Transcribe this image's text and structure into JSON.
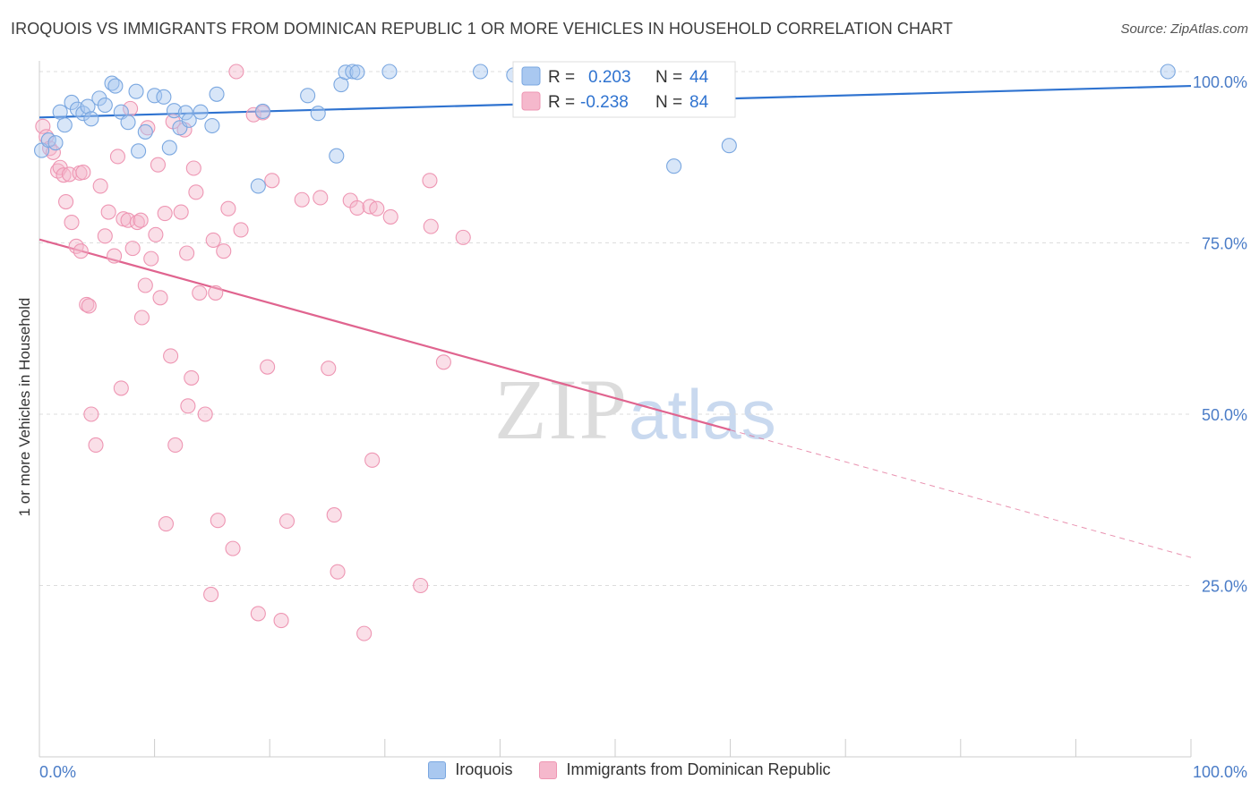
{
  "title": "IROQUOIS VS IMMIGRANTS FROM DOMINICAN REPUBLIC 1 OR MORE VEHICLES IN HOUSEHOLD CORRELATION CHART",
  "source": "Source: ZipAtlas.com",
  "watermark": {
    "zip": "ZIP",
    "atlas": "atlas"
  },
  "colors": {
    "blue_fill": "#a9c8f0",
    "blue_stroke": "#7aa7e0",
    "blue_line": "#2f73d0",
    "pink_fill": "#f5b8cc",
    "pink_stroke": "#ee96b3",
    "pink_line": "#e0648f",
    "axis_text": "#4a7cc7",
    "grid": "#dddddd"
  },
  "legend_box": {
    "rows": [
      {
        "r_label": "R =",
        "r_value": "0.203",
        "n_label": "N =",
        "n_value": "44",
        "series": "blue"
      },
      {
        "r_label": "R =",
        "r_value": "-0.238",
        "n_label": "N =",
        "n_value": "84",
        "series": "pink"
      }
    ]
  },
  "bottom_legend": {
    "series1": "Iroquois",
    "series2": "Immigrants from Dominican Republic"
  },
  "chart_data": {
    "type": "scatter",
    "title": "IROQUOIS VS IMMIGRANTS FROM DOMINICAN REPUBLIC 1 OR MORE VEHICLES IN HOUSEHOLD CORRELATION CHART",
    "xlabel": "",
    "ylabel": "1 or more Vehicles in Household",
    "xlim": [
      0,
      100
    ],
    "ylim": [
      0,
      102
    ],
    "x_ticks": [
      0,
      10,
      20,
      30,
      40,
      50,
      60,
      70,
      80,
      90,
      100
    ],
    "x_tick_labels": {
      "min": "0.0%",
      "max": "100.0%"
    },
    "y_ticks": [
      25,
      50,
      75,
      100
    ],
    "y_tick_labels": [
      "25.0%",
      "50.0%",
      "75.0%",
      "100.0%"
    ],
    "series": [
      {
        "name": "Iroquois",
        "color": "blue",
        "r": 0.203,
        "n": 44,
        "trend": {
          "x": [
            0,
            100
          ],
          "y": [
            93.3,
            97.9
          ]
        },
        "points": [
          [
            0.2,
            88.5
          ],
          [
            0.8,
            90.0
          ],
          [
            1.4,
            89.6
          ],
          [
            1.8,
            94.1
          ],
          [
            2.2,
            92.2
          ],
          [
            2.8,
            95.5
          ],
          [
            3.3,
            94.5
          ],
          [
            3.8,
            93.9
          ],
          [
            4.2,
            94.9
          ],
          [
            4.5,
            93.1
          ],
          [
            5.2,
            96.1
          ],
          [
            5.7,
            95.1
          ],
          [
            6.3,
            98.3
          ],
          [
            6.6,
            97.9
          ],
          [
            7.1,
            94.1
          ],
          [
            7.7,
            92.6
          ],
          [
            8.4,
            97.1
          ],
          [
            8.6,
            88.4
          ],
          [
            9.2,
            91.2
          ],
          [
            10.0,
            96.5
          ],
          [
            10.8,
            96.3
          ],
          [
            11.3,
            88.9
          ],
          [
            11.7,
            94.3
          ],
          [
            12.2,
            91.8
          ],
          [
            12.7,
            94.0
          ],
          [
            13.0,
            92.9
          ],
          [
            14.0,
            94.1
          ],
          [
            15.0,
            92.1
          ],
          [
            15.4,
            96.7
          ],
          [
            19.0,
            83.3
          ],
          [
            19.4,
            94.2
          ],
          [
            23.3,
            96.5
          ],
          [
            24.2,
            93.9
          ],
          [
            25.8,
            87.7
          ],
          [
            26.2,
            98.1
          ],
          [
            26.6,
            99.9
          ],
          [
            27.2,
            100.0
          ],
          [
            27.6,
            99.9
          ],
          [
            30.4,
            100.0
          ],
          [
            38.3,
            100.0
          ],
          [
            41.2,
            99.5
          ],
          [
            55.1,
            86.2
          ],
          [
            59.9,
            89.2
          ],
          [
            98.0,
            100.0
          ]
        ]
      },
      {
        "name": "Immigrants from Dominican Republic",
        "color": "pink",
        "r": -0.238,
        "n": 84,
        "trend": {
          "x": [
            0,
            60
          ],
          "y": [
            75.5,
            47.7
          ]
        },
        "trend_dashed": {
          "x": [
            60,
            100
          ],
          "y": [
            47.7,
            29.1
          ]
        },
        "points": [
          [
            0.3,
            92.0
          ],
          [
            0.6,
            90.5
          ],
          [
            0.9,
            88.8
          ],
          [
            1.2,
            88.2
          ],
          [
            1.6,
            85.5
          ],
          [
            1.8,
            86.0
          ],
          [
            2.1,
            84.9
          ],
          [
            2.3,
            81.0
          ],
          [
            2.6,
            85.0
          ],
          [
            2.8,
            78.0
          ],
          [
            3.2,
            74.5
          ],
          [
            3.5,
            85.2
          ],
          [
            3.6,
            73.8
          ],
          [
            3.8,
            85.3
          ],
          [
            4.1,
            66.0
          ],
          [
            4.3,
            65.8
          ],
          [
            4.5,
            50.0
          ],
          [
            4.9,
            45.5
          ],
          [
            5.3,
            83.3
          ],
          [
            5.7,
            76.0
          ],
          [
            6.0,
            79.5
          ],
          [
            6.5,
            73.1
          ],
          [
            6.8,
            87.6
          ],
          [
            7.1,
            53.8
          ],
          [
            7.3,
            78.5
          ],
          [
            7.7,
            78.3
          ],
          [
            7.9,
            94.6
          ],
          [
            8.1,
            74.2
          ],
          [
            8.5,
            78.0
          ],
          [
            8.8,
            78.3
          ],
          [
            8.9,
            64.1
          ],
          [
            9.2,
            68.8
          ],
          [
            9.4,
            91.8
          ],
          [
            9.7,
            72.7
          ],
          [
            10.1,
            76.2
          ],
          [
            10.3,
            86.4
          ],
          [
            10.5,
            67.0
          ],
          [
            10.9,
            79.3
          ],
          [
            11.0,
            34.0
          ],
          [
            11.4,
            58.5
          ],
          [
            11.6,
            92.7
          ],
          [
            11.8,
            45.5
          ],
          [
            12.3,
            79.5
          ],
          [
            12.6,
            91.5
          ],
          [
            12.8,
            73.5
          ],
          [
            12.9,
            51.2
          ],
          [
            13.2,
            55.3
          ],
          [
            13.4,
            85.9
          ],
          [
            13.6,
            82.4
          ],
          [
            13.9,
            67.7
          ],
          [
            14.4,
            50.0
          ],
          [
            14.9,
            23.7
          ],
          [
            15.1,
            75.4
          ],
          [
            15.3,
            67.7
          ],
          [
            15.5,
            34.5
          ],
          [
            16.0,
            73.8
          ],
          [
            16.4,
            80.0
          ],
          [
            16.8,
            30.4
          ],
          [
            17.1,
            100.0
          ],
          [
            17.5,
            76.9
          ],
          [
            18.6,
            93.7
          ],
          [
            19.0,
            20.9
          ],
          [
            19.4,
            94.0
          ],
          [
            19.8,
            56.9
          ],
          [
            20.2,
            84.1
          ],
          [
            21.0,
            19.9
          ],
          [
            21.5,
            34.4
          ],
          [
            22.8,
            81.3
          ],
          [
            24.4,
            81.6
          ],
          [
            25.1,
            56.7
          ],
          [
            25.6,
            35.3
          ],
          [
            25.9,
            27.0
          ],
          [
            27.0,
            81.2
          ],
          [
            27.6,
            80.1
          ],
          [
            28.2,
            18.0
          ],
          [
            28.7,
            80.3
          ],
          [
            28.9,
            43.3
          ],
          [
            29.3,
            80.0
          ],
          [
            30.5,
            78.8
          ],
          [
            33.1,
            25.0
          ],
          [
            33.9,
            84.1
          ],
          [
            34.0,
            77.4
          ],
          [
            35.1,
            57.6
          ],
          [
            36.8,
            75.8
          ]
        ]
      }
    ]
  }
}
